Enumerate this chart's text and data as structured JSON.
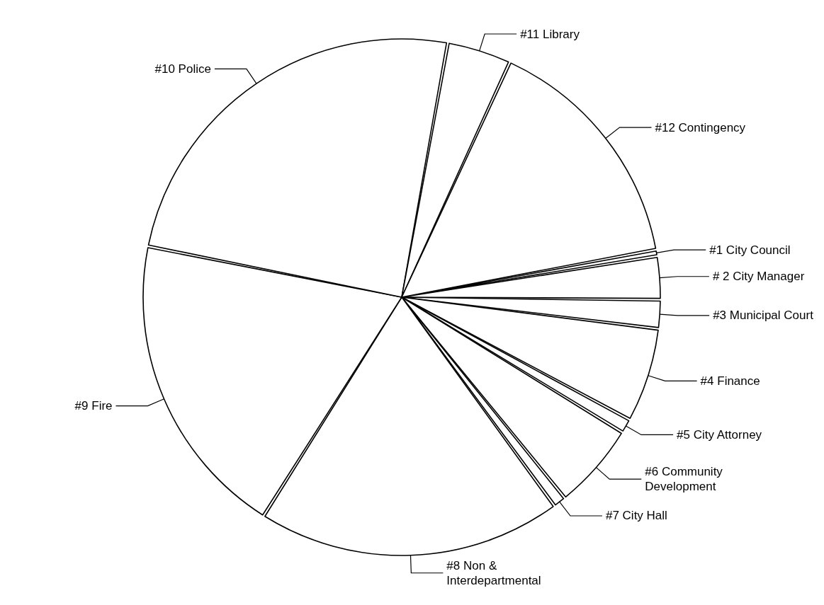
{
  "chart_data": {
    "type": "pie",
    "categories": [
      "#1 City Council",
      "# 2 City Manager",
      "#3 Municipal Court",
      "#4 Finance",
      "#5 City Attorney",
      "#6 Community\nDevelopment",
      "#7 City Hall",
      "#8 Non &\nInterdepartmental",
      "#9 Fire",
      "#10 Police",
      "#11 Library",
      "#12 Contingency"
    ],
    "values": [
      0.4,
      2.7,
      1.8,
      5.9,
      0.9,
      5.4,
      0.8,
      19.0,
      19.2,
      24.7,
      4.0,
      15.2
    ],
    "colors": [
      "#ffffff",
      "#ffffff",
      "#ffffff",
      "#ffffff",
      "#ffffff",
      "#ffffff",
      "#ffffff",
      "#ffffff",
      "#ffffff",
      "#ffffff",
      "#ffffff",
      "#ffffff"
    ],
    "legend": false
  }
}
